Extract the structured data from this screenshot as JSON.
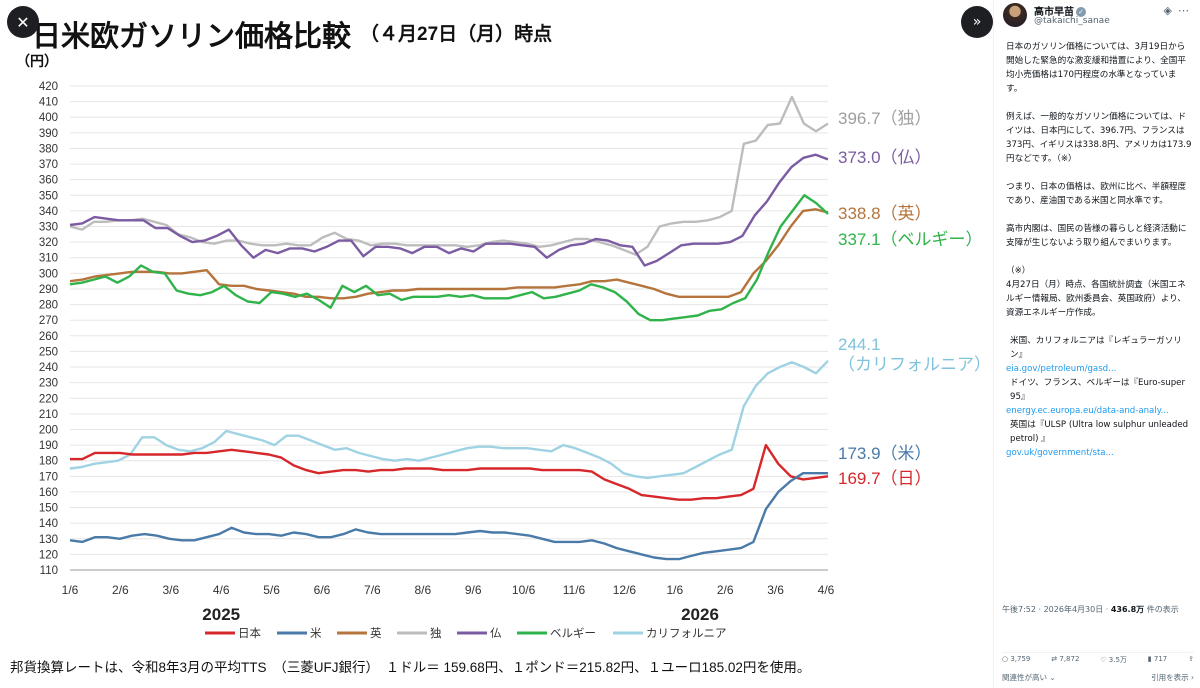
{
  "chart_data": {
    "type": "line",
    "title": "日米欧ガソリン価格比較",
    "subtitle": "（４月27日（月）時点",
    "ylabel": "（円）",
    "ylim": [
      110,
      420
    ],
    "yticks": [
      110,
      120,
      130,
      140,
      150,
      160,
      170,
      180,
      190,
      200,
      210,
      220,
      230,
      240,
      250,
      260,
      270,
      280,
      290,
      300,
      310,
      320,
      330,
      340,
      350,
      360,
      370,
      380,
      390,
      400,
      410,
      420
    ],
    "xticklabels": [
      "1/6",
      "2/6",
      "3/6",
      "4/6",
      "5/6",
      "6/6",
      "7/6",
      "8/6",
      "9/6",
      "10/6",
      "11/6",
      "12/6",
      "1/6",
      "2/6",
      "3/6",
      "4/6"
    ],
    "year_labels": [
      "2025",
      "2026"
    ],
    "legend_placement": "bottom",
    "series": [
      {
        "name": "日本",
        "color": "#d6272b",
        "end_label": "169.7（日）",
        "values": [
          181,
          181,
          185,
          185,
          185,
          184,
          184,
          184,
          184,
          184,
          185,
          185,
          186,
          187,
          186,
          185,
          184,
          182,
          177,
          174,
          172,
          173,
          174,
          174,
          173,
          174,
          174,
          175,
          175,
          175,
          174,
          174,
          174,
          175,
          175,
          175,
          175,
          175,
          174,
          174,
          174,
          174,
          173,
          168,
          165,
          162,
          158,
          157,
          156,
          155,
          155,
          156,
          156,
          157,
          158,
          162,
          190,
          178,
          170,
          168,
          169,
          170
        ]
      },
      {
        "name": "米",
        "color": "#4a7aa8",
        "end_label": "173.9（米）",
        "values": [
          129,
          128,
          131,
          131,
          130,
          132,
          133,
          132,
          130,
          129,
          129,
          131,
          133,
          137,
          134,
          133,
          133,
          132,
          134,
          133,
          131,
          131,
          133,
          136,
          134,
          133,
          133,
          133,
          133,
          133,
          133,
          133,
          134,
          135,
          134,
          134,
          133,
          132,
          130,
          128,
          128,
          128,
          129,
          127,
          124,
          122,
          120,
          118,
          117,
          117,
          119,
          121,
          122,
          123,
          124,
          128,
          149,
          160,
          167,
          172,
          172,
          172
        ]
      },
      {
        "name": "英",
        "color": "#b5743c",
        "end_label": "338.8（英）",
        "values": [
          295,
          296,
          298,
          299,
          300,
          301,
          301,
          301,
          300,
          300,
          301,
          302,
          293,
          292,
          292,
          290,
          289,
          288,
          287,
          285,
          285,
          284,
          284,
          285,
          287,
          288,
          289,
          289,
          290,
          290,
          290,
          290,
          290,
          290,
          290,
          290,
          291,
          291,
          291,
          291,
          292,
          293,
          295,
          295,
          296,
          294,
          292,
          290,
          287,
          285,
          285,
          285,
          285,
          285,
          288,
          300,
          308,
          318,
          330,
          340,
          341,
          339
        ]
      },
      {
        "name": "独",
        "color": "#bdbdbd",
        "end_label": "396.7（独）",
        "values": [
          330,
          328,
          333,
          333,
          334,
          334,
          335,
          333,
          331,
          325,
          323,
          320,
          319,
          321,
          321,
          319,
          318,
          318,
          319,
          318,
          318,
          323,
          326,
          322,
          321,
          318,
          319,
          319,
          318,
          318,
          318,
          318,
          318,
          317,
          318,
          320,
          321,
          320,
          319,
          317,
          318,
          320,
          322,
          322,
          320,
          318,
          315,
          312,
          317,
          330,
          332,
          333,
          333,
          334,
          336,
          340,
          383,
          385,
          395,
          396,
          413,
          396,
          391,
          396
        ]
      },
      {
        "name": "仏",
        "color": "#7b5ba1",
        "end_label": "373.0（仏）",
        "values": [
          331,
          332,
          336,
          335,
          334,
          334,
          334,
          329,
          329,
          324,
          320,
          321,
          324,
          328,
          318,
          310,
          315,
          313,
          316,
          316,
          314,
          317,
          321,
          321,
          311,
          317,
          317,
          316,
          313,
          317,
          317,
          313,
          316,
          314,
          319,
          319,
          319,
          318,
          317,
          310,
          315,
          318,
          319,
          322,
          321,
          318,
          317,
          305,
          308,
          313,
          318,
          319,
          319,
          319,
          320,
          324,
          337,
          346,
          358,
          368,
          374,
          376,
          373
        ]
      },
      {
        "name": "ベルギー",
        "color": "#2fb34a",
        "end_label": "337.1（ベルギー）",
        "values": [
          293,
          294,
          296,
          298,
          294,
          298,
          305,
          301,
          300,
          289,
          287,
          286,
          288,
          292,
          286,
          282,
          281,
          288,
          287,
          285,
          287,
          283,
          278,
          292,
          288,
          292,
          286,
          287,
          283,
          285,
          285,
          285,
          286,
          285,
          286,
          284,
          284,
          284,
          286,
          288,
          284,
          285,
          287,
          289,
          293,
          291,
          288,
          282,
          274,
          270,
          270,
          271,
          272,
          273,
          276,
          277,
          281,
          284,
          296,
          314,
          330,
          340,
          350,
          345,
          338
        ]
      },
      {
        "name": "カリフォルニア",
        "color": "#9fd3e3",
        "end_label": "244.1\n（カリフォルニア）",
        "values": [
          175,
          176,
          178,
          179,
          180,
          184,
          195,
          195,
          190,
          187,
          186,
          188,
          192,
          199,
          197,
          195,
          193,
          190,
          196,
          196,
          193,
          190,
          187,
          188,
          185,
          183,
          181,
          180,
          181,
          180,
          182,
          184,
          186,
          188,
          189,
          189,
          188,
          188,
          188,
          187,
          186,
          190,
          188,
          185,
          182,
          178,
          172,
          170,
          169,
          170,
          171,
          172,
          176,
          180,
          184,
          187,
          215,
          228,
          236,
          240,
          243,
          240,
          236,
          244
        ]
      }
    ],
    "footer_note": "邦貨換算レートは、令和8年3月の平均TTS　（三菱UFJ銀行）　１ドル＝ 159.68円、１ポンド＝215.82円、１ユーロ185.02円を使用。"
  },
  "post": {
    "author": "高市早苗",
    "handle": "@takaichi_sanae",
    "paragraphs": [
      "日本のガソリン価格については、3月19日から開始した緊急的な激変緩和措置により、全国平均小売価格は170円程度の水準となっています。",
      "例えば、一般的なガソリン価格については、ドイツは、日本円にして、396.7円、フランスは373円、イギリスは338.8円、アメリカは173.9円などです。（※）",
      "つまり、日本の価格は、欧州に比べ、半額程度であり、産油国である米国と同水準です。",
      "高市内閣は、国民の皆様の暮らしと経済活動に支障が生じないよう取り組んでまいります。",
      "（※）",
      "4月27日（月）時点、各国統計調査（米国エネルギー情報局、欧州委員会、英国政府）より、資源エネルギー庁作成。",
      "米国、カリフォルニアは『レギュラーガソリン』",
      "ドイツ、フランス、ベルギーは『Euro-super 95』",
      "英国は『ULSP (Ultra low sulphur unleaded petrol) 』"
    ],
    "links": [
      "eia.gov/petroleum/gasd...",
      "energy.ec.europa.eu/data-and-analy...",
      "gov.uk/government/sta..."
    ],
    "timestamp": "午後7:52 · 2026年4月30日 · ",
    "views_count": "436.8万",
    "views_suffix": " 件の表示",
    "replies": "3,759",
    "reposts": "7,872",
    "likes": "3.5万",
    "bookmarks": "717",
    "relevance": "関連性が高い ⌄",
    "quotes": "引用を表示 ›"
  },
  "nav": {
    "close": "✕",
    "expand": "»"
  }
}
